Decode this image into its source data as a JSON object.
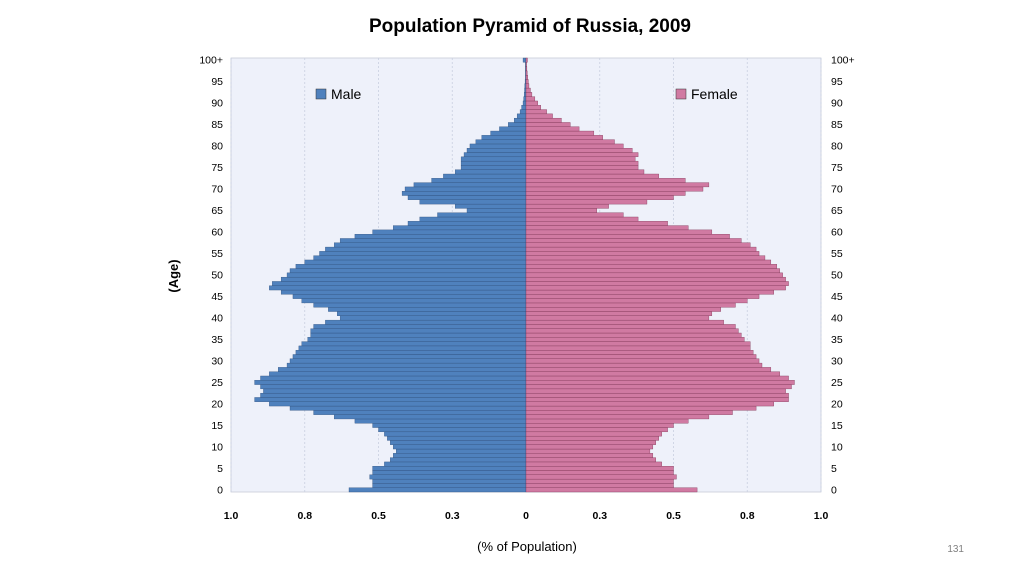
{
  "page_number": "131",
  "chart_data": {
    "type": "bar",
    "orientation": "horizontal-pyramid",
    "title": "Population Pyramid of Russia, 2009",
    "xlabel": "(% of Population)",
    "ylabel": "(Age)",
    "x_ticks": [
      "1.0",
      "0.8",
      "0.5",
      "0.3",
      "0",
      "0.3",
      "0.5",
      "0.8",
      "1.0"
    ],
    "xlim": [
      -1.0,
      1.0
    ],
    "y_ticks": [
      "0",
      "5",
      "10",
      "15",
      "20",
      "25",
      "30",
      "35",
      "40",
      "45",
      "50",
      "55",
      "60",
      "65",
      "70",
      "75",
      "80",
      "85",
      "90",
      "95",
      "100+"
    ],
    "ages": [
      0,
      1,
      2,
      3,
      4,
      5,
      6,
      7,
      8,
      9,
      10,
      11,
      12,
      13,
      14,
      15,
      16,
      17,
      18,
      19,
      20,
      21,
      22,
      23,
      24,
      25,
      26,
      27,
      28,
      29,
      30,
      31,
      32,
      33,
      34,
      35,
      36,
      37,
      38,
      39,
      40,
      41,
      42,
      43,
      44,
      45,
      46,
      47,
      48,
      49,
      50,
      51,
      52,
      53,
      54,
      55,
      56,
      57,
      58,
      59,
      60,
      61,
      62,
      63,
      64,
      65,
      66,
      67,
      68,
      69,
      70,
      71,
      72,
      73,
      74,
      75,
      76,
      77,
      78,
      79,
      80,
      81,
      82,
      83,
      84,
      85,
      86,
      87,
      88,
      89,
      90,
      91,
      92,
      93,
      94,
      95,
      96,
      97,
      98,
      99,
      100
    ],
    "grid": true,
    "legend": "top",
    "series": [
      {
        "name": "Male",
        "color": "#4f81bd",
        "values": [
          0.6,
          0.52,
          0.52,
          0.53,
          0.52,
          0.52,
          0.48,
          0.46,
          0.45,
          0.44,
          0.45,
          0.46,
          0.47,
          0.48,
          0.5,
          0.52,
          0.58,
          0.65,
          0.72,
          0.8,
          0.87,
          0.92,
          0.9,
          0.89,
          0.9,
          0.92,
          0.9,
          0.87,
          0.84,
          0.81,
          0.8,
          0.79,
          0.78,
          0.77,
          0.76,
          0.74,
          0.73,
          0.73,
          0.72,
          0.68,
          0.63,
          0.64,
          0.67,
          0.72,
          0.76,
          0.79,
          0.83,
          0.87,
          0.86,
          0.83,
          0.81,
          0.8,
          0.78,
          0.75,
          0.72,
          0.7,
          0.68,
          0.65,
          0.63,
          0.58,
          0.52,
          0.45,
          0.4,
          0.36,
          0.3,
          0.2,
          0.24,
          0.36,
          0.4,
          0.42,
          0.41,
          0.38,
          0.32,
          0.28,
          0.24,
          0.22,
          0.22,
          0.22,
          0.21,
          0.2,
          0.19,
          0.17,
          0.15,
          0.12,
          0.09,
          0.06,
          0.04,
          0.03,
          0.02,
          0.015,
          0.01,
          0.008,
          0.006,
          0.005,
          0.004,
          0.003,
          0.002,
          0.002,
          0.001,
          0.001,
          0.01
        ]
      },
      {
        "name": "Female",
        "color": "#d07aa2",
        "values": [
          0.58,
          0.5,
          0.5,
          0.51,
          0.5,
          0.5,
          0.46,
          0.44,
          0.43,
          0.42,
          0.43,
          0.44,
          0.45,
          0.46,
          0.48,
          0.5,
          0.55,
          0.62,
          0.7,
          0.78,
          0.84,
          0.89,
          0.89,
          0.88,
          0.9,
          0.91,
          0.89,
          0.86,
          0.83,
          0.8,
          0.79,
          0.78,
          0.77,
          0.76,
          0.76,
          0.74,
          0.73,
          0.72,
          0.71,
          0.67,
          0.62,
          0.63,
          0.66,
          0.71,
          0.75,
          0.79,
          0.84,
          0.88,
          0.89,
          0.88,
          0.87,
          0.86,
          0.85,
          0.83,
          0.81,
          0.79,
          0.78,
          0.76,
          0.73,
          0.69,
          0.63,
          0.55,
          0.48,
          0.38,
          0.33,
          0.24,
          0.28,
          0.41,
          0.5,
          0.54,
          0.6,
          0.62,
          0.54,
          0.45,
          0.4,
          0.38,
          0.38,
          0.37,
          0.38,
          0.36,
          0.33,
          0.3,
          0.26,
          0.23,
          0.18,
          0.15,
          0.12,
          0.09,
          0.07,
          0.05,
          0.04,
          0.03,
          0.02,
          0.015,
          0.01,
          0.008,
          0.006,
          0.004,
          0.003,
          0.002,
          0.005
        ]
      }
    ]
  }
}
